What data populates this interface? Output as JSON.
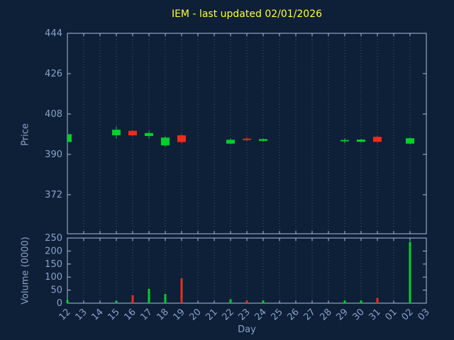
{
  "colors": {
    "background": "#0e1f38",
    "axis_border": "#a6c0da",
    "tick_text": "#87a3c9",
    "grid": "#3a5a80",
    "title": "#ffff33",
    "up": "#00d02a",
    "down": "#ee2c1c"
  },
  "chart_data": {
    "type": "candlestick",
    "title": "IEM - last updated 02/01/2026",
    "xlabel": "Day",
    "grid": "vertical-dotted",
    "legend": "none",
    "price_axis": {
      "label": "Price",
      "ticks": [
        372,
        390,
        408,
        426,
        444
      ],
      "range": [
        354.6,
        444
      ]
    },
    "volume_axis": {
      "label": "Volume (0000)",
      "ticks": [
        0,
        50,
        100,
        150,
        200,
        250
      ],
      "range": [
        0,
        250
      ]
    },
    "x_tick_labels": [
      "12",
      "13",
      "14",
      "15",
      "16",
      "17",
      "18",
      "19",
      "20",
      "21",
      "22",
      "23",
      "24",
      "25",
      "26",
      "27",
      "28",
      "29",
      "30",
      "31",
      "01",
      "02",
      "03"
    ],
    "candles": [
      {
        "day": "12",
        "open": 395.5,
        "high": 399.5,
        "low": 395.0,
        "close": 399.0,
        "volume": 12
      },
      {
        "day": "15",
        "open": 398.5,
        "high": 402.5,
        "low": 397.0,
        "close": 401.0,
        "volume": 8
      },
      {
        "day": "16",
        "open": 400.5,
        "high": 401.0,
        "low": 398.0,
        "close": 398.5,
        "volume": 30
      },
      {
        "day": "17",
        "open": 398.2,
        "high": 400.5,
        "low": 397.0,
        "close": 399.5,
        "volume": 55
      },
      {
        "day": "18",
        "open": 394.0,
        "high": 398.0,
        "low": 393.5,
        "close": 397.5,
        "volume": 35
      },
      {
        "day": "19",
        "open": 398.5,
        "high": 399.0,
        "low": 395.0,
        "close": 395.5,
        "volume": 95
      },
      {
        "day": "22",
        "open": 394.8,
        "high": 397.0,
        "low": 394.5,
        "close": 396.5,
        "volume": 15
      },
      {
        "day": "23",
        "open": 397.0,
        "high": 397.8,
        "low": 396.0,
        "close": 396.4,
        "volume": 10
      },
      {
        "day": "24",
        "open": 396.0,
        "high": 397.2,
        "low": 395.6,
        "close": 396.8,
        "volume": 10
      },
      {
        "day": "29",
        "open": 395.8,
        "high": 397.2,
        "low": 395.0,
        "close": 396.4,
        "volume": 10
      },
      {
        "day": "30",
        "open": 395.6,
        "high": 396.8,
        "low": 395.2,
        "close": 396.6,
        "volume": 10
      },
      {
        "day": "31",
        "open": 397.8,
        "high": 398.2,
        "low": 395.2,
        "close": 395.6,
        "volume": 20
      },
      {
        "day": "02",
        "open": 394.8,
        "high": 397.6,
        "low": 394.4,
        "close": 397.2,
        "volume": 235
      }
    ]
  }
}
